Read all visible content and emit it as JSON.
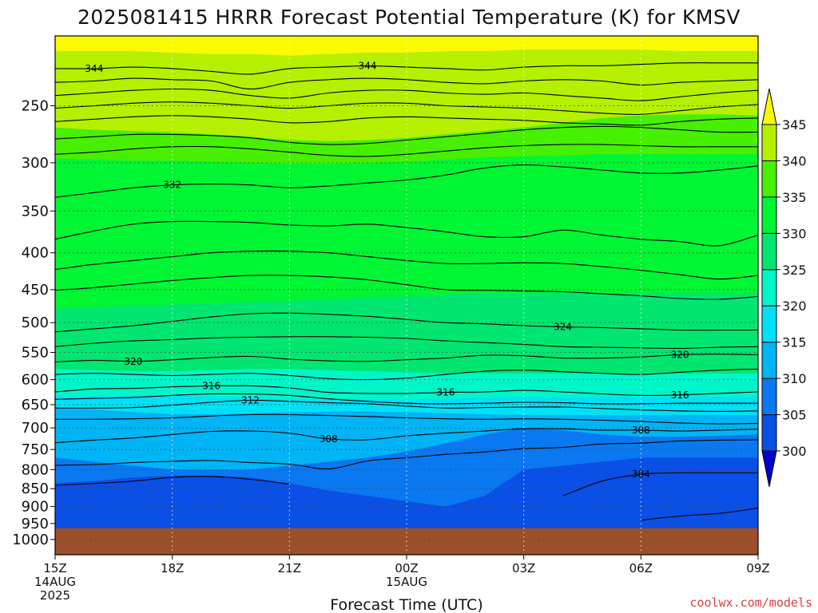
{
  "chart_data": {
    "type": "heatmap",
    "title": "2025081415 HRRR Forecast Potential Temperature (K) for KMSV",
    "xlabel": "Forecast Time (UTC)",
    "credit": "coolwx.com/models",
    "x_ticks": [
      {
        "hour": 0,
        "lines": [
          "15Z",
          "14AUG",
          "2025"
        ]
      },
      {
        "hour": 3,
        "lines": [
          "18Z"
        ]
      },
      {
        "hour": 6,
        "lines": [
          "21Z"
        ]
      },
      {
        "hour": 9,
        "lines": [
          "00Z",
          "15AUG"
        ]
      },
      {
        "hour": 12,
        "lines": [
          "03Z"
        ]
      },
      {
        "hour": 15,
        "lines": [
          "06Z"
        ]
      },
      {
        "hour": 18,
        "lines": [
          "09Z"
        ]
      }
    ],
    "xlim": [
      0,
      18
    ],
    "y_ticks": [
      250,
      300,
      350,
      400,
      450,
      500,
      550,
      600,
      650,
      700,
      750,
      800,
      850,
      900,
      950,
      1000
    ],
    "ylim": [
      200,
      1050
    ],
    "y_scale": "log-pressure (inverted)",
    "ground_level_hpa": 965,
    "ground_color": "#9b4f2a",
    "grid": "dotted",
    "colorbar": {
      "ticks": [
        300,
        305,
        310,
        315,
        320,
        325,
        330,
        335,
        340,
        345
      ],
      "bins": [
        {
          "from": 295,
          "to": 300,
          "color": "#0000cc"
        },
        {
          "from": 300,
          "to": 305,
          "color": "#0a50e6"
        },
        {
          "from": 305,
          "to": 310,
          "color": "#0a78f0"
        },
        {
          "from": 310,
          "to": 315,
          "color": "#00b4f5"
        },
        {
          "from": 315,
          "to": 320,
          "color": "#00e1f5"
        },
        {
          "from": 320,
          "to": 325,
          "color": "#00f5c8"
        },
        {
          "from": 325,
          "to": 330,
          "color": "#00e670"
        },
        {
          "from": 330,
          "to": 335,
          "color": "#00f532"
        },
        {
          "from": 335,
          "to": 340,
          "color": "#46f000"
        },
        {
          "from": 340,
          "to": 345,
          "color": "#b4f000"
        },
        {
          "from": 345,
          "to": 350,
          "color": "#fafa00"
        }
      ]
    },
    "fill_bands": [
      {
        "theta": 345,
        "color": "#fafa00",
        "levels": [
          200,
          200,
          200,
          200,
          200,
          200,
          200,
          200,
          200,
          200,
          200,
          200,
          200,
          200,
          200,
          200,
          200,
          200,
          200
        ]
      },
      {
        "theta": 340,
        "color": "#b4f000",
        "levels": [
          210,
          210,
          210,
          211,
          212,
          212,
          213,
          212,
          211,
          211,
          210,
          210,
          209,
          209,
          209,
          209,
          210,
          210,
          210
        ]
      },
      {
        "theta": 335,
        "color": "#46f000",
        "levels": [
          268,
          270,
          271,
          272,
          274,
          276,
          279,
          280,
          279,
          277,
          274,
          271,
          268,
          264,
          260,
          258,
          257,
          257,
          258
        ]
      },
      {
        "theta": 330,
        "color": "#00f532",
        "levels": [
          296,
          297,
          298,
          298,
          299,
          300,
          301,
          301,
          300,
          299,
          297,
          295,
          294,
          293,
          292,
          292,
          292,
          292,
          292
        ]
      },
      {
        "theta": 325,
        "color": "#00e670",
        "levels": [
          478,
          476,
          474,
          472,
          470,
          468,
          466,
          464,
          462,
          460,
          458,
          456,
          455,
          455,
          455,
          455,
          455,
          455,
          455
        ]
      },
      {
        "theta": 320,
        "color": "#00f5c8",
        "levels": [
          580,
          582,
          584,
          584,
          582,
          580,
          580,
          582,
          584,
          586,
          588,
          588,
          588,
          588,
          588,
          588,
          588,
          588,
          588
        ]
      },
      {
        "theta": 315,
        "color": "#00e1f5",
        "levels": [
          632,
          632,
          632,
          632,
          634,
          636,
          638,
          640,
          640,
          640,
          638,
          636,
          634,
          634,
          634,
          634,
          634,
          634,
          634
        ]
      },
      {
        "theta": 310,
        "color": "#00b4f5",
        "levels": [
          655,
          660,
          666,
          670,
          670,
          668,
          666,
          664,
          664,
          666,
          668,
          670,
          672,
          672,
          672,
          672,
          672,
          672,
          672
        ]
      },
      {
        "theta": 305,
        "color": "#0a78f0",
        "levels": [
          770,
          780,
          790,
          800,
          800,
          800,
          790,
          780,
          770,
          755,
          735,
          715,
          700,
          705,
          715,
          720,
          720,
          718,
          715
        ]
      },
      {
        "theta": 300,
        "color": "#0a50e6",
        "levels": [
          835,
          830,
          820,
          815,
          815,
          820,
          835,
          855,
          870,
          885,
          900,
          870,
          800,
          790,
          780,
          770,
          770,
          770,
          770
        ]
      }
    ],
    "contours": [
      {
        "theta": 344,
        "label_at": [
          1,
          8
        ],
        "levels": [
          222,
          222,
          221,
          222,
          224,
          226,
          222,
          221,
          220,
          221,
          222,
          223,
          221,
          220,
          220,
          219,
          218,
          218,
          218
        ]
      },
      {
        "theta": 342,
        "label_at": [],
        "levels": [
          232,
          231,
          229,
          230,
          231,
          237,
          232,
          230,
          229,
          230,
          232,
          233,
          231,
          230,
          231,
          234,
          232,
          231,
          230
        ]
      },
      {
        "theta": 340,
        "label_at": [],
        "levels": [
          242,
          240,
          238,
          237,
          238,
          242,
          244,
          240,
          238,
          238,
          240,
          241,
          240,
          242,
          244,
          246,
          243,
          240,
          238
        ]
      },
      {
        "theta": 338,
        "label_at": [],
        "levels": [
          252,
          250,
          248,
          247,
          248,
          250,
          252,
          250,
          248,
          248,
          250,
          251,
          252,
          254,
          256,
          257,
          254,
          251,
          249
        ]
      },
      {
        "theta": 336,
        "label_at": [],
        "levels": [
          263,
          261,
          259,
          258,
          259,
          261,
          264,
          263,
          260,
          259,
          260,
          261,
          262,
          264,
          265,
          266,
          263,
          261,
          260
        ]
      },
      {
        "theta": 334,
        "label_at": [],
        "levels": [
          278,
          276,
          274,
          274,
          275,
          277,
          281,
          283,
          282,
          279,
          276,
          273,
          270,
          268,
          267,
          268,
          270,
          272,
          272
        ]
      },
      {
        "theta": 333,
        "label_at": [],
        "levels": [
          292,
          290,
          287,
          285,
          285,
          287,
          290,
          293,
          294,
          292,
          289,
          286,
          284,
          283,
          283,
          284,
          285,
          285,
          285
        ]
      },
      {
        "theta": 332,
        "label_at": [
          3
        ],
        "levels": [
          335,
          330,
          325,
          322,
          321,
          322,
          325,
          323,
          320,
          317,
          312,
          305,
          302,
          304,
          307,
          310,
          310,
          307,
          303
        ]
      },
      {
        "theta": 331,
        "label_at": [],
        "levels": [
          383,
          373,
          365,
          362,
          362,
          363,
          366,
          367,
          365,
          369,
          374,
          380,
          380,
          372,
          378,
          383,
          386,
          391,
          378
        ]
      },
      {
        "theta": 329,
        "label_at": [],
        "levels": [
          422,
          415,
          410,
          405,
          400,
          398,
          398,
          400,
          405,
          410,
          414,
          414,
          413,
          414,
          418,
          423,
          429,
          435,
          430
        ]
      },
      {
        "theta": 327,
        "label_at": [],
        "levels": [
          451,
          447,
          442,
          437,
          433,
          430,
          430,
          432,
          436,
          443,
          450,
          451,
          452,
          453,
          456,
          459,
          463,
          464,
          460
        ]
      },
      {
        "theta": 324,
        "label_at": [
          13
        ],
        "levels": [
          515,
          510,
          505,
          498,
          491,
          486,
          485,
          487,
          490,
          495,
          500,
          502,
          505,
          507,
          508,
          510,
          512,
          512,
          512
        ]
      },
      {
        "theta": 322,
        "label_at": [],
        "levels": [
          540,
          534,
          530,
          528,
          525,
          524,
          523,
          523,
          524,
          526,
          530,
          533,
          536,
          540,
          541,
          542,
          543,
          541,
          540
        ]
      },
      {
        "theta": 320,
        "label_at": [
          2,
          16
        ],
        "levels": [
          567,
          564,
          566,
          563,
          559,
          557,
          562,
          565,
          566,
          563,
          560,
          555,
          556,
          560,
          560,
          558,
          554,
          553,
          554
        ]
      },
      {
        "theta": 318,
        "label_at": [],
        "levels": [
          590,
          588,
          590,
          592,
          590,
          588,
          592,
          598,
          600,
          597,
          590,
          584,
          582,
          585,
          588,
          590,
          586,
          582,
          580
        ]
      },
      {
        "theta": 316,
        "label_at": [
          4,
          10,
          16
        ],
        "levels": [
          624,
          618,
          617,
          614,
          612,
          612,
          616,
          625,
          627,
          627,
          625,
          624,
          621,
          624,
          628,
          631,
          630,
          627,
          624
        ]
      },
      {
        "theta": 314,
        "label_at": [],
        "levels": [
          639,
          637,
          635,
          631,
          628,
          628,
          631,
          638,
          643,
          647,
          648,
          647,
          645,
          646,
          648,
          648,
          647,
          647,
          647
        ]
      },
      {
        "theta": 312,
        "label_at": [
          5
        ],
        "levels": [
          657,
          657,
          656,
          651,
          645,
          641,
          643,
          646,
          648,
          653,
          657,
          656,
          655,
          655,
          658,
          661,
          663,
          664,
          663
        ]
      },
      {
        "theta": 310,
        "label_at": [],
        "levels": [
          681,
          681,
          680,
          678,
          674,
          671,
          671,
          673,
          675,
          678,
          680,
          681,
          680,
          681,
          683,
          686,
          689,
          691,
          690
        ]
      },
      {
        "theta": 308,
        "label_at": [
          7,
          15
        ],
        "levels": [
          734,
          728,
          723,
          715,
          708,
          707,
          712,
          725,
          727,
          718,
          712,
          707,
          702,
          702,
          705,
          705,
          707,
          705,
          703
        ]
      },
      {
        "theta": 306,
        "label_at": [],
        "levels": [
          789,
          787,
          782,
          779,
          777,
          782,
          786,
          798,
          778,
          770,
          762,
          756,
          748,
          745,
          737,
          735,
          730,
          728,
          727
        ]
      },
      {
        "theta": 304,
        "label_at": [
          15
        ],
        "levels": [
          null,
          null,
          null,
          null,
          null,
          null,
          null,
          null,
          null,
          null,
          null,
          null,
          null,
          870,
          830,
          812,
          808,
          808,
          808
        ]
      },
      {
        "theta": 302,
        "label_at": [],
        "levels": [
          841,
          836,
          830,
          820,
          818,
          825,
          838,
          null,
          null,
          null,
          null,
          null,
          null,
          null,
          null,
          null,
          null,
          null,
          null
        ]
      },
      {
        "theta": 301,
        "label_at": [],
        "levels": [
          null,
          null,
          null,
          null,
          null,
          null,
          null,
          null,
          null,
          null,
          null,
          null,
          null,
          null,
          null,
          940,
          928,
          920,
          905
        ]
      }
    ]
  }
}
